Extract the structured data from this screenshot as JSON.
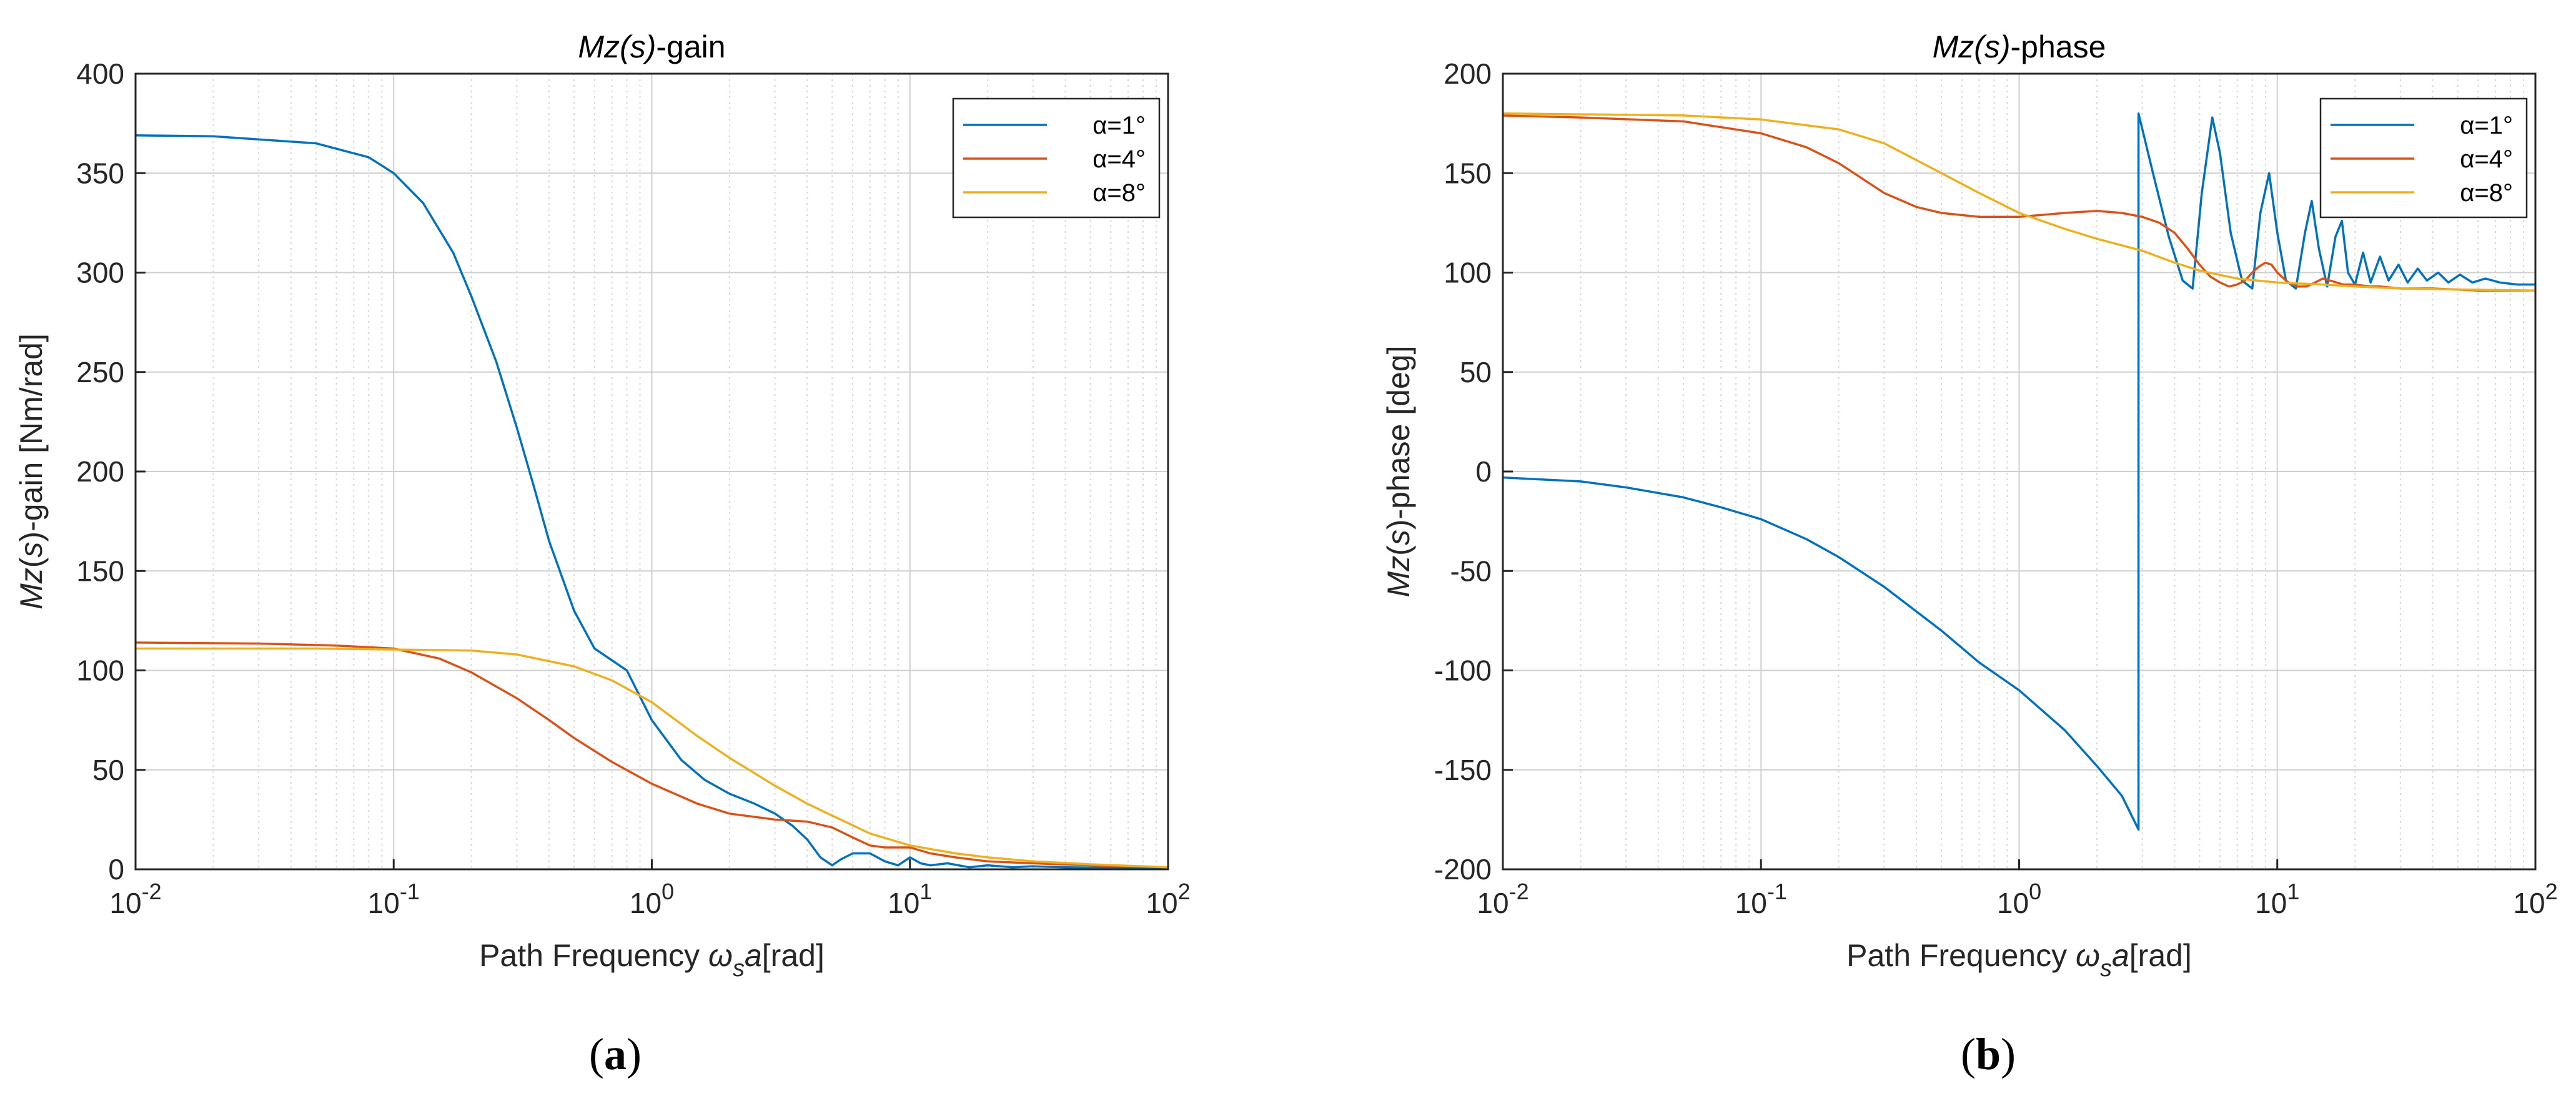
{
  "colors": {
    "series1": "#0072BD",
    "series2": "#D95319",
    "series3": "#EDB120",
    "grid": "#cfcfcf",
    "axis": "#262626"
  },
  "chart_data": [
    {
      "type": "line",
      "panel_label": "(a)",
      "panel_letter": "a",
      "title": {
        "italic": "Mz(s)",
        "rest": "-gain"
      },
      "xlabel": {
        "prefix": "Path Frequency ",
        "omega": "ω",
        "sub": "s",
        "a": "a",
        "unit": "[rad]"
      },
      "ylabel": {
        "italic1": "Mz",
        "mid": "(",
        "italic2": "s",
        "rest": ")-gain [Nm/rad]"
      },
      "xscale": "log",
      "xlim": [
        0.01,
        100
      ],
      "ylim": [
        0,
        400
      ],
      "yticks": [
        0,
        50,
        100,
        150,
        200,
        250,
        300,
        350,
        400
      ],
      "xtick_exps": [
        -2,
        -1,
        0,
        1,
        2
      ],
      "xtick_base": "10",
      "grid": true,
      "legend_position": "top-right",
      "series": [
        {
          "name": "α=1°",
          "x": [
            0.01,
            0.02,
            0.05,
            0.08,
            0.1,
            0.13,
            0.17,
            0.2,
            0.25,
            0.3,
            0.35,
            0.4,
            0.5,
            0.6,
            0.8,
            1.0,
            1.3,
            1.6,
            2.0,
            2.5,
            3.0,
            3.5,
            4.0,
            4.5,
            5.0,
            5.4,
            6.0,
            7.0,
            8.0,
            9.0,
            10,
            11,
            12,
            14,
            17,
            20,
            25,
            30,
            40,
            60,
            100
          ],
          "y": [
            369,
            368.5,
            365,
            358,
            350,
            335,
            310,
            288,
            255,
            222,
            192,
            165,
            130,
            111,
            100,
            75,
            55,
            45,
            38,
            33,
            28,
            22,
            15,
            6,
            2,
            5,
            8,
            8,
            4,
            2,
            6,
            3,
            2,
            3,
            1,
            2,
            1,
            1.5,
            1,
            0.8,
            0.5
          ]
        },
        {
          "name": "α=4°",
          "x": [
            0.01,
            0.03,
            0.06,
            0.1,
            0.15,
            0.2,
            0.3,
            0.4,
            0.5,
            0.7,
            1.0,
            1.5,
            2.0,
            3.0,
            4.0,
            5.0,
            6.0,
            7.0,
            8.0,
            10,
            12,
            15,
            20,
            30,
            50,
            100
          ],
          "y": [
            114,
            113.5,
            112.5,
            111,
            106,
            99,
            86,
            75,
            66,
            54,
            43,
            33,
            28,
            25,
            24,
            21,
            16,
            12,
            11,
            11,
            8,
            6,
            4,
            3,
            2,
            1
          ]
        },
        {
          "name": "α=8°",
          "x": [
            0.01,
            0.05,
            0.1,
            0.2,
            0.3,
            0.5,
            0.7,
            1.0,
            1.5,
            2.0,
            3.0,
            4.0,
            5.0,
            7.0,
            10,
            15,
            20,
            30,
            50,
            100
          ],
          "y": [
            111,
            111,
            110.5,
            110,
            108,
            102,
            95,
            84,
            67,
            56,
            42,
            33,
            27,
            18,
            12,
            8,
            6,
            4,
            2.5,
            1
          ]
        }
      ]
    },
    {
      "type": "line",
      "panel_label": "(b)",
      "panel_letter": "b",
      "title": {
        "italic": "Mz(s)",
        "rest": "-phase"
      },
      "xlabel": {
        "prefix": "Path Frequency ",
        "omega": "ω",
        "sub": "s",
        "a": "a",
        "unit": "[rad]"
      },
      "ylabel": {
        "italic1": "Mz",
        "mid": "(",
        "italic2": "s",
        "rest": ")-phase [deg]"
      },
      "xscale": "log",
      "xlim": [
        0.01,
        100
      ],
      "ylim": [
        -200,
        200
      ],
      "yticks": [
        -200,
        -150,
        -100,
        -50,
        0,
        50,
        100,
        150,
        200
      ],
      "xtick_exps": [
        -2,
        -1,
        0,
        1,
        2
      ],
      "xtick_base": "10",
      "grid": true,
      "legend_position": "top-right",
      "series": [
        {
          "name": "α=1°",
          "x": [
            0.01,
            0.02,
            0.03,
            0.05,
            0.07,
            0.1,
            0.15,
            0.2,
            0.3,
            0.5,
            0.7,
            1.0,
            1.5,
            2.0,
            2.5,
            2.9,
            2.9,
            2.9,
            3.3,
            3.8,
            4.3,
            4.7,
            5.1,
            5.6,
            6.0,
            6.6,
            7.3,
            8.0,
            8.6,
            9.3,
            10.0,
            10.8,
            11.8,
            12.8,
            13.6,
            14.5,
            15.6,
            16.8,
            17.8,
            18.8,
            20,
            21.5,
            23,
            25,
            27,
            29.5,
            32,
            35,
            38,
            42,
            46,
            51,
            57,
            64,
            73,
            85,
            100
          ],
          "y": [
            -3,
            -5,
            -8,
            -13,
            -18,
            -24,
            -34,
            -43,
            -58,
            -80,
            -96,
            -110,
            -130,
            -148,
            -163,
            -180,
            100,
            180,
            150,
            118,
            96,
            92,
            140,
            178,
            160,
            120,
            96,
            92,
            130,
            150,
            120,
            96,
            92,
            120,
            136,
            112,
            93,
            118,
            126,
            100,
            94,
            110,
            95,
            108,
            96,
            104,
            95,
            102,
            96,
            100,
            95,
            99,
            95,
            97,
            95,
            94,
            94
          ]
        },
        {
          "name": "α=4°",
          "x": [
            0.01,
            0.02,
            0.05,
            0.1,
            0.15,
            0.2,
            0.3,
            0.4,
            0.5,
            0.7,
            1.0,
            1.5,
            2.0,
            2.5,
            3.0,
            3.5,
            4.0,
            4.5,
            5.0,
            5.5,
            6.0,
            6.5,
            7.0,
            7.5,
            8.0,
            8.5,
            9.0,
            9.5,
            10,
            11,
            12,
            13,
            14,
            15,
            16,
            18,
            20,
            23,
            25,
            30,
            40,
            60,
            100
          ],
          "y": [
            179,
            178,
            176,
            170,
            163,
            155,
            140,
            133,
            130,
            128,
            128,
            130,
            131,
            130,
            128,
            125,
            120,
            112,
            104,
            98,
            95,
            93,
            94,
            96,
            100,
            103,
            105,
            104,
            100,
            95,
            93,
            93,
            95,
            97,
            96,
            94,
            94,
            93,
            93,
            92,
            92,
            91,
            91
          ]
        },
        {
          "name": "α=8°",
          "x": [
            0.01,
            0.05,
            0.1,
            0.2,
            0.3,
            0.5,
            0.7,
            1.0,
            1.5,
            2.0,
            3.0,
            4.0,
            5.0,
            7.0,
            10,
            15,
            20,
            30,
            50,
            100
          ],
          "y": [
            180,
            179,
            177,
            172,
            165,
            150,
            140,
            130,
            122,
            117,
            111,
            105,
            101,
            97,
            95,
            94,
            93,
            92,
            91.5,
            91
          ]
        }
      ]
    }
  ]
}
